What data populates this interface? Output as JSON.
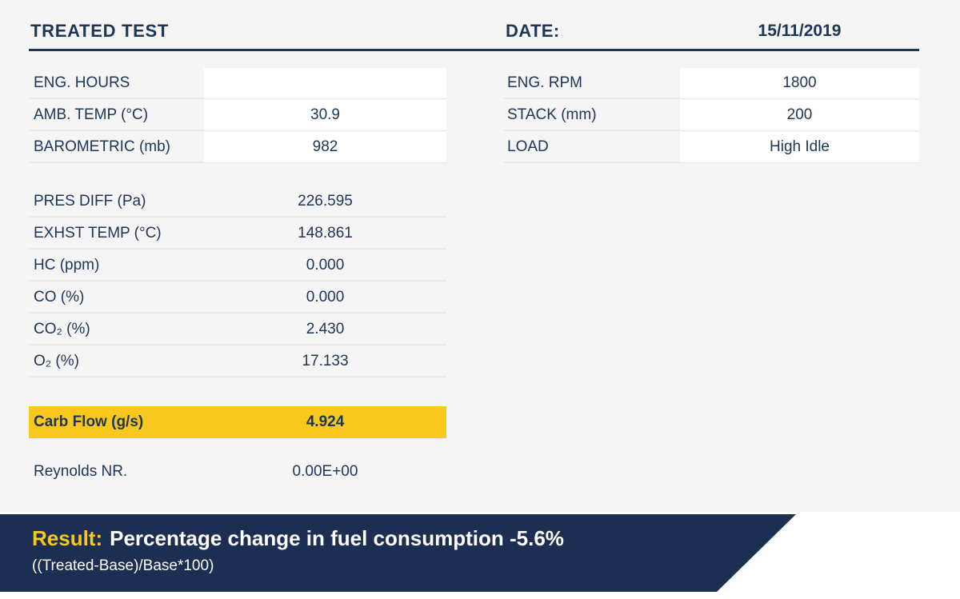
{
  "header": {
    "title": "TREATED TEST",
    "date_label": "DATE:",
    "date_value": "15/11/2019"
  },
  "top_left_rows": [
    {
      "label": "ENG. HOURS",
      "value": ""
    },
    {
      "label": "AMB. TEMP (°C)",
      "value": "30.9"
    },
    {
      "label": "BAROMETRIC (mb)",
      "value": "982"
    }
  ],
  "top_right_rows": [
    {
      "label": "ENG. RPM",
      "value": "1800"
    },
    {
      "label": "STACK (mm)",
      "value": "200"
    },
    {
      "label": "LOAD",
      "value": "High Idle"
    }
  ],
  "measurement_rows": [
    {
      "label": "PRES DIFF (Pa)",
      "value": "226.595"
    },
    {
      "label": "EXHST TEMP (°C)",
      "value": "148.861"
    },
    {
      "label": "HC (ppm)",
      "value": "0.000"
    },
    {
      "label": "CO (%)",
      "value": "0.000"
    },
    {
      "label": "CO₂ (%)",
      "value": "2.430"
    },
    {
      "label": "O₂ (%)",
      "value": "17.133"
    }
  ],
  "highlight_row": {
    "label": "Carb Flow (g/s)",
    "value": "4.924"
  },
  "reynolds_row": {
    "label": "Reynolds NR.",
    "value": "0.00E+00"
  },
  "result_banner": {
    "prefix": "Result:",
    "text": "Percentage change in fuel consumption -5.6%",
    "formula": "((Treated-Base)/Base*100)"
  },
  "colors": {
    "navy_text": "#1d3557",
    "banner_navy": "#1c2f52",
    "highlight_yellow": "#f8c81c",
    "page_gray": "#f5f5f6",
    "cell_white": "#ffffff",
    "separator": "#e7e8ea"
  }
}
